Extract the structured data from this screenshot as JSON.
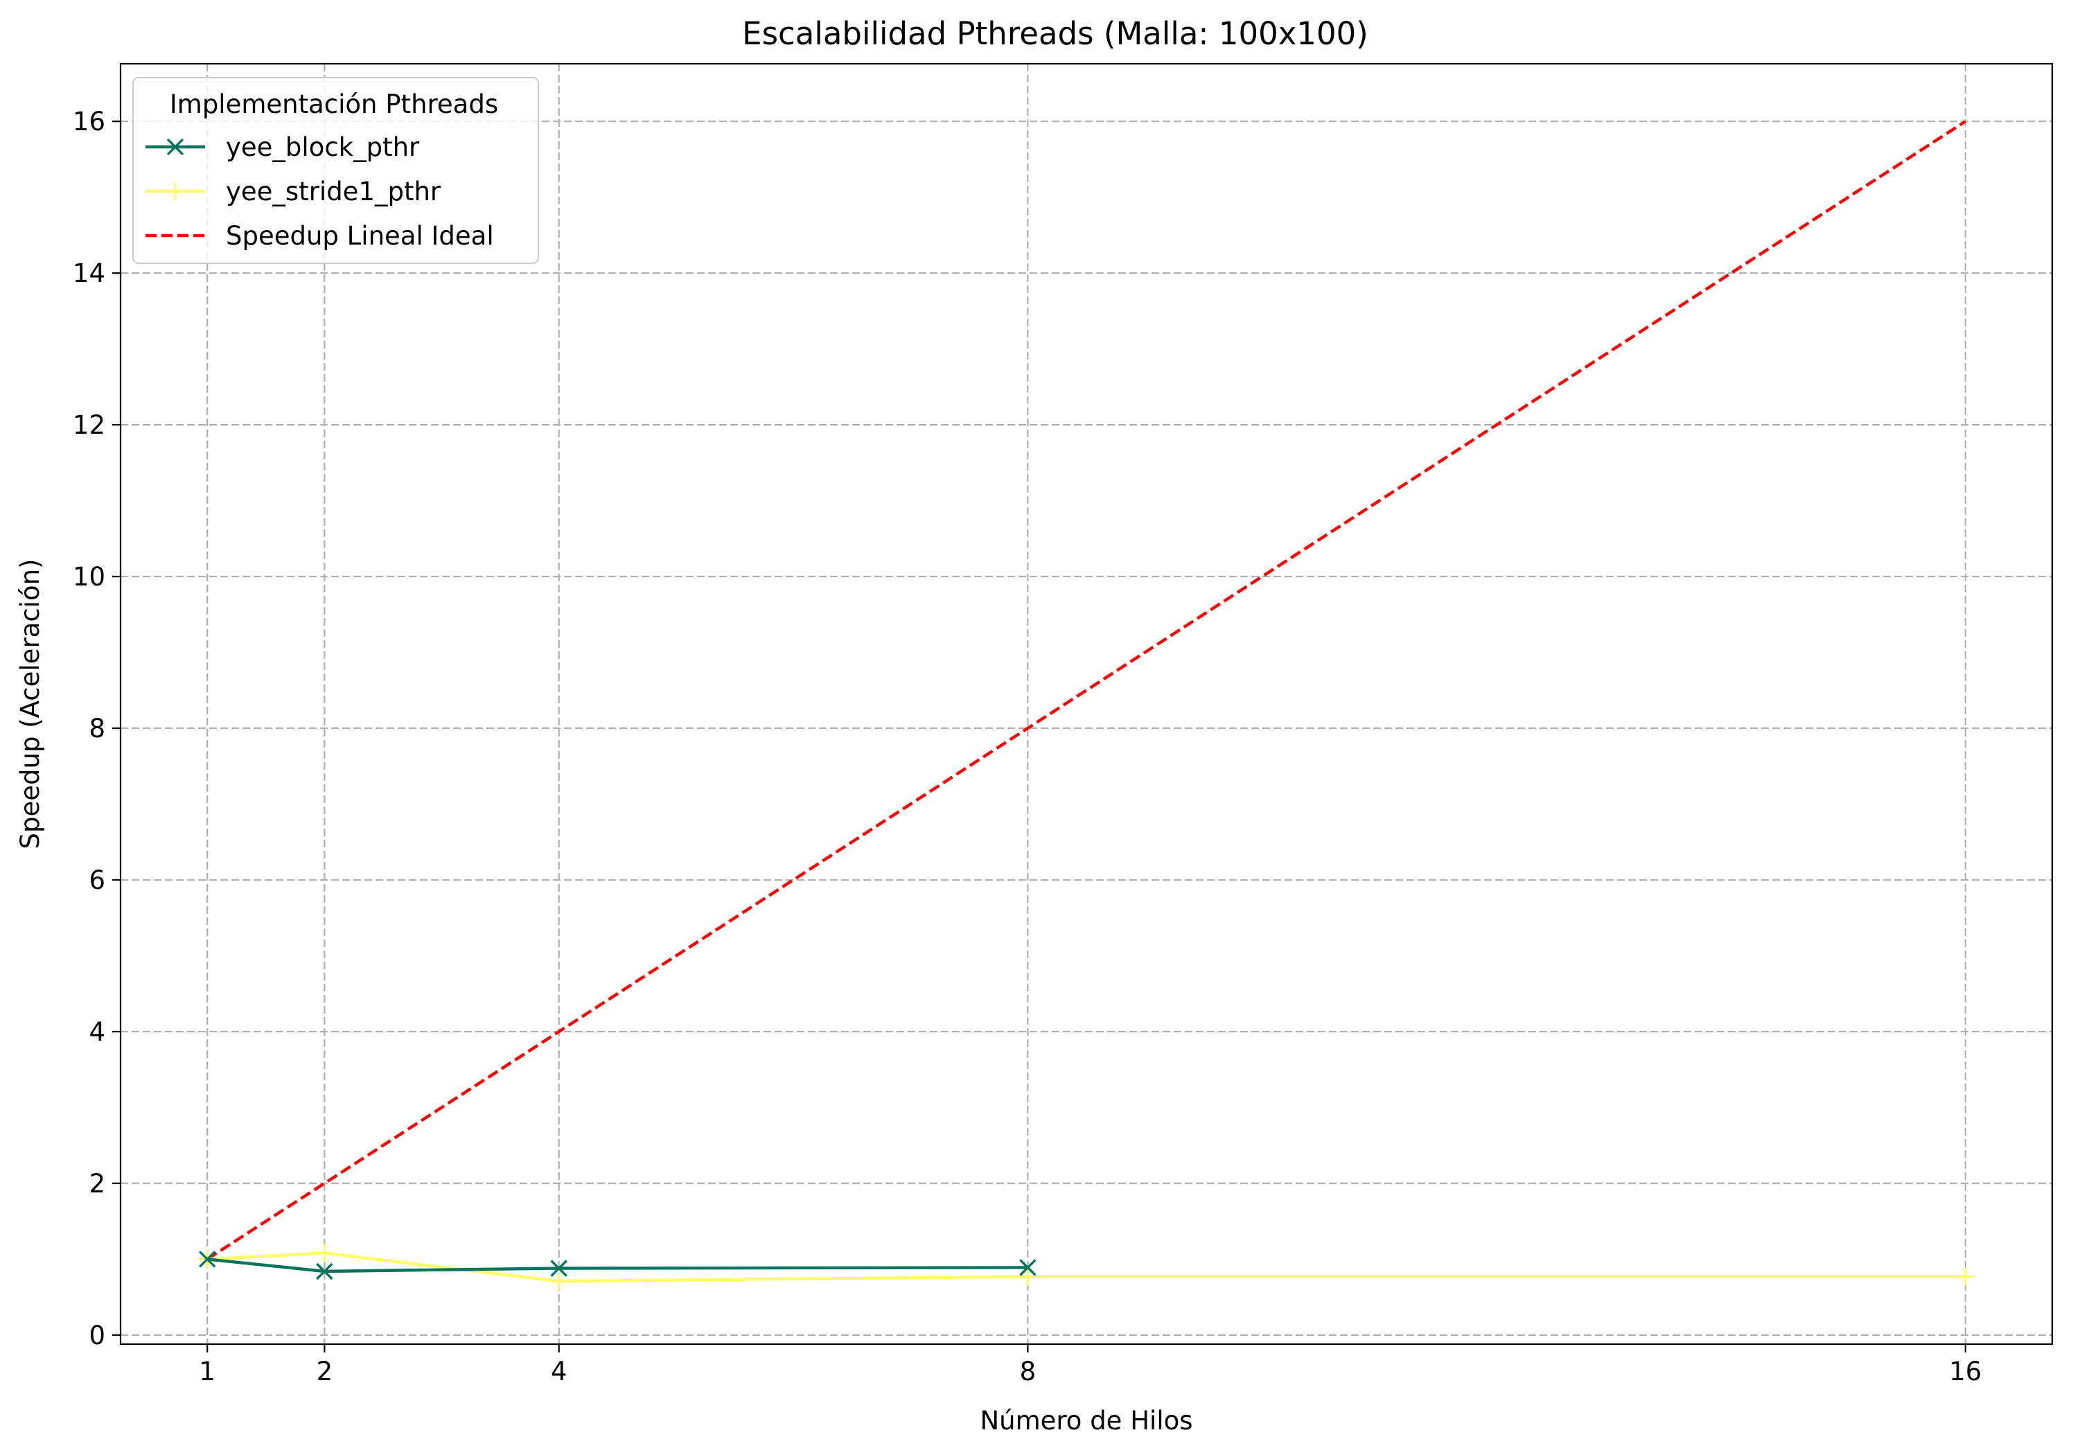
{
  "chart_data": {
    "type": "line",
    "title": "Escalabilidad Pthreads (Malla: 100x100)",
    "xlabel": "Número de Hilos",
    "ylabel": "Speedup (Aceleración)",
    "x_ticks": [
      1,
      2,
      4,
      8,
      16
    ],
    "x_tick_labels": [
      "1",
      "2",
      "4",
      "8",
      "16"
    ],
    "y_ticks": [
      0,
      2,
      4,
      6,
      8,
      10,
      12,
      14,
      16
    ],
    "y_tick_labels": [
      "0",
      "2",
      "4",
      "6",
      "8",
      "10",
      "12",
      "14",
      "16"
    ],
    "xlim": [
      0.26,
      16.74
    ],
    "ylim": [
      -0.12,
      16.76
    ],
    "grid": true,
    "legend": {
      "title": "Implementación Pthreads",
      "placement": "top-left"
    },
    "series": [
      {
        "name": "yee_block_pthr",
        "color": "#00755e",
        "marker": "x",
        "line_style": "solid",
        "x": [
          1,
          2,
          4,
          8
        ],
        "y": [
          1.0,
          0.84,
          0.88,
          0.89
        ]
      },
      {
        "name": "yee_stride1_pthr",
        "color": "#ffff66",
        "marker": "+",
        "line_style": "solid",
        "x": [
          1,
          2,
          4,
          8,
          16
        ],
        "y": [
          1.0,
          1.08,
          0.71,
          0.77,
          0.77
        ]
      },
      {
        "name": "Speedup Lineal Ideal",
        "color": "#ff0000",
        "marker": "none",
        "line_style": "dashed",
        "x": [
          1,
          16
        ],
        "y": [
          1,
          16
        ]
      }
    ]
  }
}
